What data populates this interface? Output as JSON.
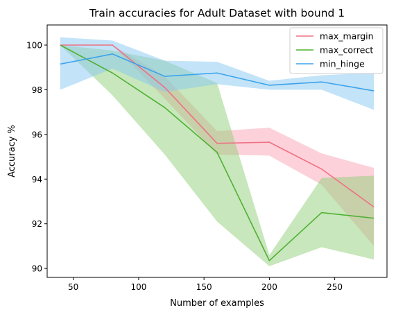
{
  "chart_data": {
    "type": "line",
    "title": "Train accuracies for Adult Dataset with bound 1",
    "xlabel": "Number of examples",
    "ylabel": "Accuracy %",
    "xlim": [
      30,
      290
    ],
    "ylim": [
      89.6,
      100.9
    ],
    "xticks": [
      50,
      100,
      150,
      200,
      250
    ],
    "yticks": [
      90,
      92,
      94,
      96,
      98,
      100
    ],
    "grid": false,
    "legend_position": "top-right",
    "x": [
      40,
      80,
      120,
      160,
      200,
      240,
      280
    ],
    "series": [
      {
        "name": "max_margin",
        "color": "#f07084",
        "band_color": "#f9a3b4",
        "values": [
          100.0,
          100.0,
          98.1,
          95.6,
          95.65,
          94.45,
          92.75
        ],
        "lower": [
          100.0,
          100.0,
          97.6,
          95.1,
          95.05,
          93.75,
          91.0
        ],
        "upper": [
          100.0,
          100.0,
          98.6,
          96.15,
          96.3,
          95.15,
          94.5
        ]
      },
      {
        "name": "max_correct",
        "color": "#4fb033",
        "band_color": "#92d07a",
        "values": [
          100.0,
          98.75,
          97.2,
          95.2,
          90.35,
          92.5,
          92.25
        ],
        "lower": [
          100.0,
          97.75,
          95.1,
          92.1,
          90.1,
          90.95,
          90.4
        ],
        "upper": [
          100.0,
          99.75,
          99.3,
          98.3,
          90.6,
          94.05,
          94.15
        ]
      },
      {
        "name": "min_hinge",
        "color": "#3ba3ec",
        "band_color": "#88c8f2",
        "values": [
          99.15,
          99.6,
          98.6,
          98.75,
          98.2,
          98.35,
          97.95
        ],
        "lower": [
          98.0,
          98.95,
          97.9,
          98.25,
          98.0,
          98.0,
          97.1
        ],
        "upper": [
          100.35,
          100.2,
          99.3,
          99.25,
          98.4,
          98.65,
          98.75
        ]
      }
    ]
  }
}
